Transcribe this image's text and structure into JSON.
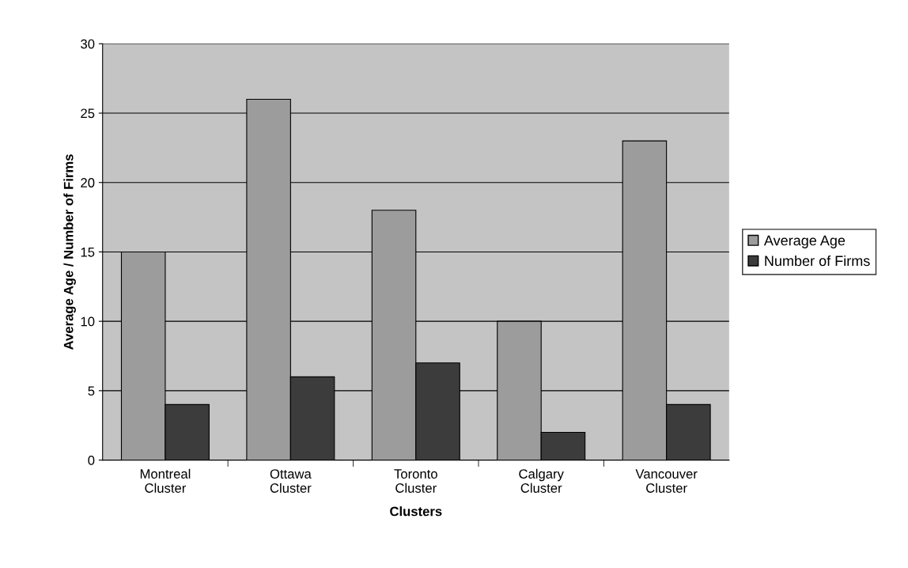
{
  "chart_data": {
    "type": "bar",
    "xlabel": "Clusters",
    "ylabel": "Average Age / Number of Firms",
    "categories": [
      "Montreal\nCluster",
      "Ottawa\nCluster",
      "Toronto\nCluster",
      "Calgary\nCluster",
      "Vancouver\nCluster"
    ],
    "series": [
      {
        "name": "Average Age",
        "color": "#9c9c9c",
        "values": [
          15,
          26,
          18,
          10,
          23
        ]
      },
      {
        "name": "Number of Firms",
        "color": "#3c3c3c",
        "values": [
          4,
          6,
          7,
          2,
          4
        ]
      }
    ],
    "ylim": [
      0,
      30
    ],
    "yticks": [
      0,
      5,
      10,
      15,
      20,
      25,
      30
    ],
    "grid": "y",
    "legend": "right"
  }
}
